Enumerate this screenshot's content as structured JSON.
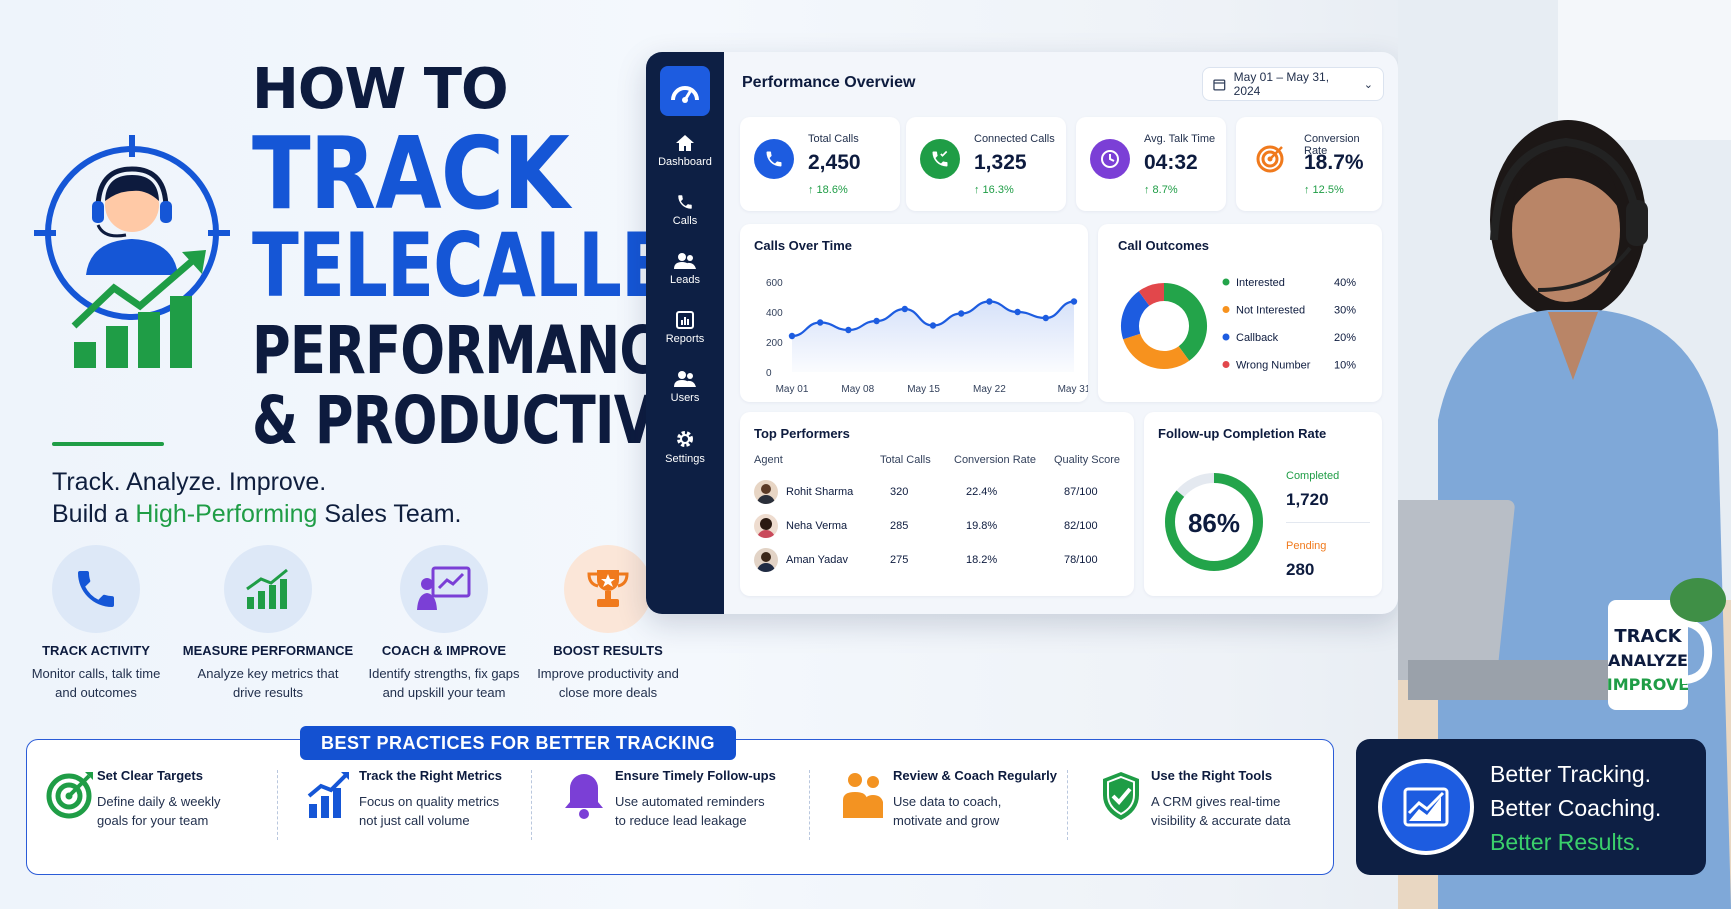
{
  "title": {
    "how_to": "HOW TO",
    "track": "TRACK",
    "telecaller": "TELECALLER",
    "performance": "PERFORMANCE",
    "productivity": "& PRODUCTIVITY",
    "tagline_line1": "Track. Analyze. Improve.",
    "tagline_pre": "Build a ",
    "tagline_highlight": "High-Performing",
    "tagline_post": " Sales Team."
  },
  "features": [
    {
      "title": "TRACK ACTIVITY",
      "line1": "Monitor calls, talk time",
      "line2": "and outcomes",
      "icon": "phone-icon"
    },
    {
      "title": "MEASURE PERFORMANCE",
      "line1": "Analyze key metrics that",
      "line2": "drive results",
      "icon": "bar-chart-icon"
    },
    {
      "title": "COACH & IMPROVE",
      "line1": "Identify strengths, fix gaps",
      "line2": "and upskill your team",
      "icon": "presentation-icon"
    },
    {
      "title": "BOOST RESULTS",
      "line1": "Improve productivity and",
      "line2": "close more deals",
      "icon": "trophy-icon"
    }
  ],
  "dashboard": {
    "title": "Performance Overview",
    "date_range": "May 01 – May 31, 2024",
    "nav": [
      "Dashboard",
      "Calls",
      "Leads",
      "Reports",
      "Users",
      "Settings"
    ],
    "kpis": [
      {
        "label": "Total Calls",
        "value": "2,450",
        "change": "↑ 18.6%",
        "color": "#1d5ce0"
      },
      {
        "label": "Connected Calls",
        "value": "1,325",
        "change": "↑ 16.3%",
        "color": "#1f9d46"
      },
      {
        "label": "Avg. Talk Time",
        "value": "04:32",
        "change": "↑ 8.7%",
        "color": "#7b3fd6"
      },
      {
        "label": "Conversion Rate",
        "value": "18.7%",
        "change": "↑ 12.5%",
        "color": "#f07a1d"
      }
    ],
    "calls_over_time_title": "Calls Over Time",
    "call_outcomes_title": "Call Outcomes",
    "top_performers": {
      "title": "Top Performers",
      "headers": [
        "Agent",
        "Total Calls",
        "Conversion Rate",
        "Quality Score"
      ],
      "rows": [
        {
          "agent": "Rohit Sharma",
          "calls": "320",
          "conversion": "22.4%",
          "quality": "87/100"
        },
        {
          "agent": "Neha Verma",
          "calls": "285",
          "conversion": "19.8%",
          "quality": "82/100"
        },
        {
          "agent": "Aman Yadav",
          "calls": "275",
          "conversion": "18.2%",
          "quality": "78/100"
        }
      ]
    },
    "followup": {
      "title": "Follow-up Completion Rate",
      "percent_label": "86%",
      "percent": 0.86,
      "completed_label": "Completed",
      "completed_value": "1,720",
      "pending_label": "Pending",
      "pending_value": "280"
    }
  },
  "chart_data": [
    {
      "type": "line",
      "title": "Calls Over Time",
      "xlabel": "",
      "ylabel": "",
      "x_ticks": [
        "May 01",
        "May 08",
        "May 15",
        "May 22",
        "May 31"
      ],
      "y_ticks": [
        "0",
        "200",
        "400",
        "600"
      ],
      "ylim": [
        0,
        600
      ],
      "xlim": [
        1,
        31
      ],
      "x": [
        1,
        4,
        7,
        10,
        13,
        16,
        19,
        22,
        25,
        28,
        31
      ],
      "values": [
        240,
        330,
        280,
        340,
        420,
        310,
        390,
        470,
        400,
        360,
        470
      ],
      "color": "#1d5ce0",
      "grid": false
    },
    {
      "type": "pie",
      "title": "Call Outcomes",
      "donut": true,
      "labels": [
        "Interested",
        "Not Interested",
        "Callback",
        "Wrong Number"
      ],
      "values": [
        40,
        30,
        20,
        10
      ],
      "value_labels": [
        "40%",
        "30%",
        "20%",
        "10%"
      ],
      "colors": [
        "#23a44a",
        "#f7921e",
        "#1d5ce0",
        "#e2474b"
      ],
      "legend": "right"
    }
  ],
  "best_practices": {
    "heading": "BEST PRACTICES FOR BETTER TRACKING",
    "items": [
      {
        "title": "Set Clear Targets",
        "line1": "Define daily & weekly",
        "line2": "goals for your team",
        "icon": "target-icon"
      },
      {
        "title": "Track the Right Metrics",
        "line1": "Focus on quality metrics",
        "line2": "not just call volume",
        "icon": "growth-chart-icon"
      },
      {
        "title": "Ensure Timely Follow-ups",
        "line1": "Use automated reminders",
        "line2": "to reduce lead leakage",
        "icon": "bell-icon"
      },
      {
        "title": "Review & Coach Regularly",
        "line1": "Use data to coach,",
        "line2": "motivate and grow",
        "icon": "people-icon"
      },
      {
        "title": "Use the Right Tools",
        "line1": "A CRM gives real-time",
        "line2": "visibility & accurate data",
        "icon": "shield-check-icon"
      }
    ]
  },
  "badge": {
    "line1": "Better Tracking.",
    "line2": "Better Coaching.",
    "line3": "Better Results."
  },
  "mug": {
    "line1": "TRACK",
    "line2": "ANALYZE",
    "line3": "IMPROVE"
  }
}
